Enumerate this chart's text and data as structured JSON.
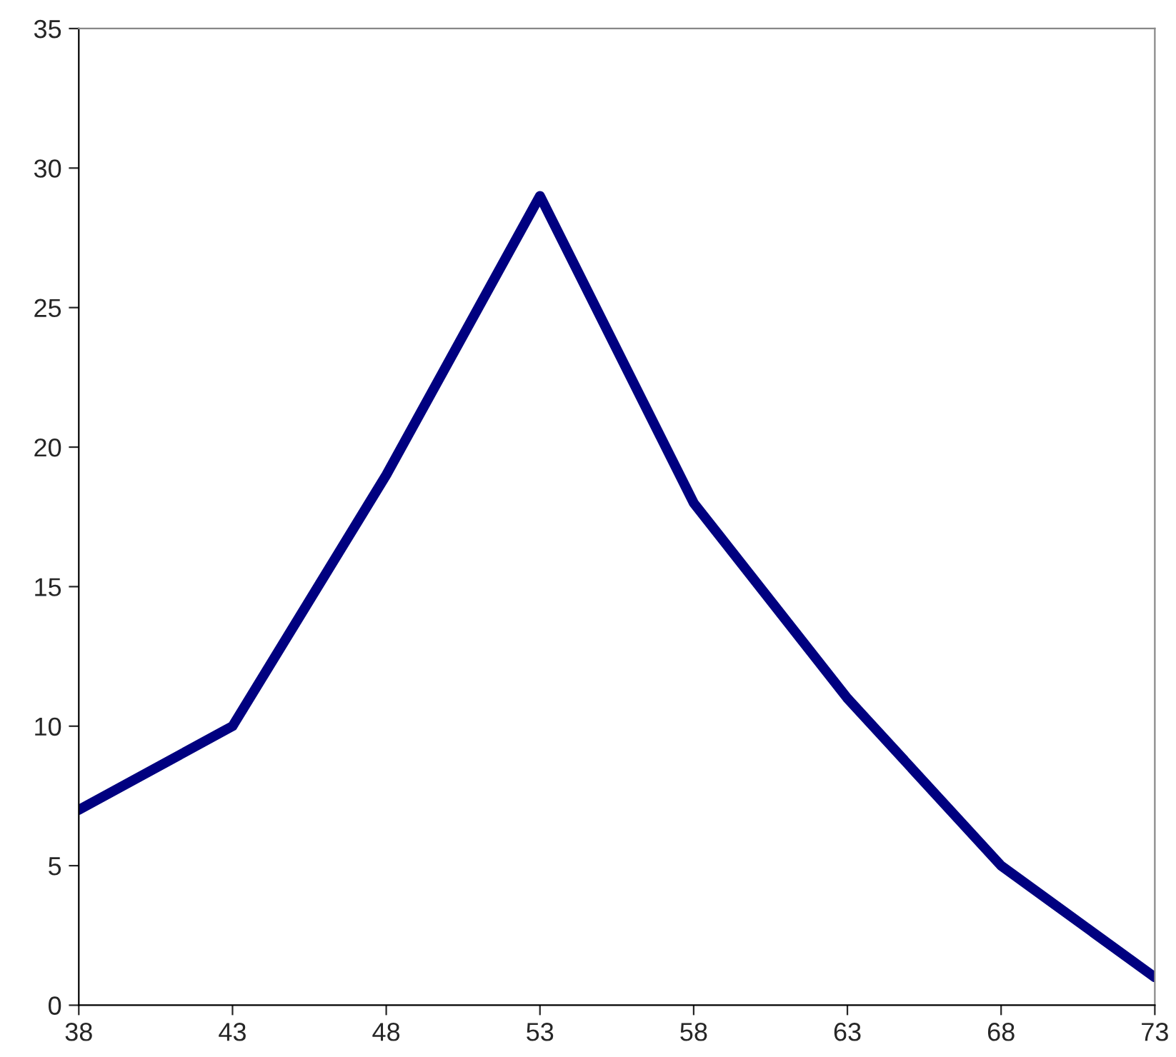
{
  "chart_data": {
    "type": "line",
    "x": [
      38,
      43,
      48,
      53,
      58,
      63,
      68,
      73
    ],
    "series": [
      {
        "color": "#000080",
        "values": [
          7,
          10,
          19,
          29,
          18,
          11,
          5,
          1
        ]
      }
    ],
    "xlim": [
      38,
      73
    ],
    "xticks": [
      38,
      43,
      48,
      53,
      58,
      63,
      68,
      73
    ],
    "ylim": [
      0,
      35
    ],
    "yticks": [
      0,
      5,
      10,
      15,
      20,
      25,
      30,
      35
    ],
    "grid": false,
    "legend": false,
    "marker": "none",
    "line_style": "solid"
  }
}
